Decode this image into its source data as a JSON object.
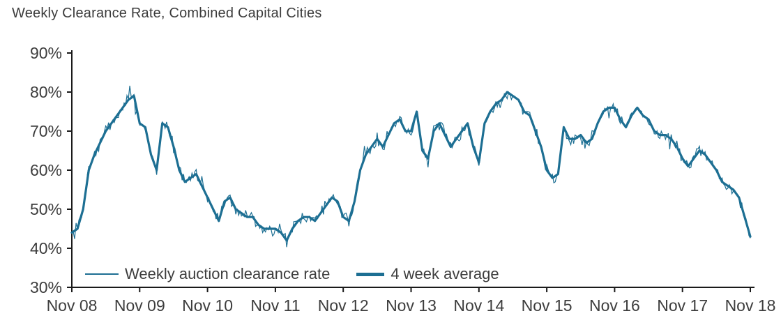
{
  "chart_data": {
    "type": "line",
    "title": "Weekly Clearance Rate, Combined Capital Cities",
    "xlabel": "",
    "ylabel": "",
    "ylim": [
      30,
      90
    ],
    "y_ticks": [
      30,
      40,
      50,
      60,
      70,
      80,
      90
    ],
    "y_tick_suffix": "%",
    "x_tick_labels": [
      "Nov 08",
      "Nov 09",
      "Nov 10",
      "Nov 11",
      "Nov 12",
      "Nov 13",
      "Nov 14",
      "Nov 15",
      "Nov 16",
      "Nov 17",
      "Nov 18"
    ],
    "x_resolution": "monthly",
    "grid": false,
    "legend_position": "bottom-inside",
    "axis_color": "#1a1a1a",
    "text_color": "#3d3d3d",
    "series": [
      {
        "name": "Weekly auction clearance rate",
        "color": "#1d6f93",
        "width": 1.2,
        "noise_amplitude": 1.8
      },
      {
        "name": "4 week average",
        "color": "#1d6f93",
        "width": 3.2
      }
    ],
    "values": [
      44,
      45,
      50,
      60,
      64,
      67,
      70,
      72,
      74,
      76,
      78,
      79,
      72,
      71,
      64,
      60,
      72,
      71,
      66,
      60,
      57,
      58,
      59,
      56,
      53,
      50,
      47,
      52,
      53,
      50,
      49,
      48,
      48,
      46,
      45,
      45,
      45,
      44,
      42,
      45,
      47,
      48,
      48,
      47,
      49,
      51,
      53,
      52,
      48,
      47,
      52,
      60,
      64,
      66,
      68,
      66,
      69,
      72,
      73,
      70,
      70,
      75,
      65,
      63,
      70,
      72,
      69,
      66,
      68,
      70,
      72,
      66,
      62,
      72,
      75,
      77,
      78,
      80,
      79,
      78,
      75,
      74,
      70,
      66,
      60,
      58,
      59,
      71,
      68,
      68,
      69,
      67,
      68,
      72,
      75,
      76,
      76,
      73,
      71,
      74,
      76,
      74,
      73,
      70,
      69,
      69,
      68,
      66,
      63,
      61,
      63,
      65,
      64,
      62,
      60,
      57,
      56,
      55,
      53,
      48,
      43
    ]
  }
}
